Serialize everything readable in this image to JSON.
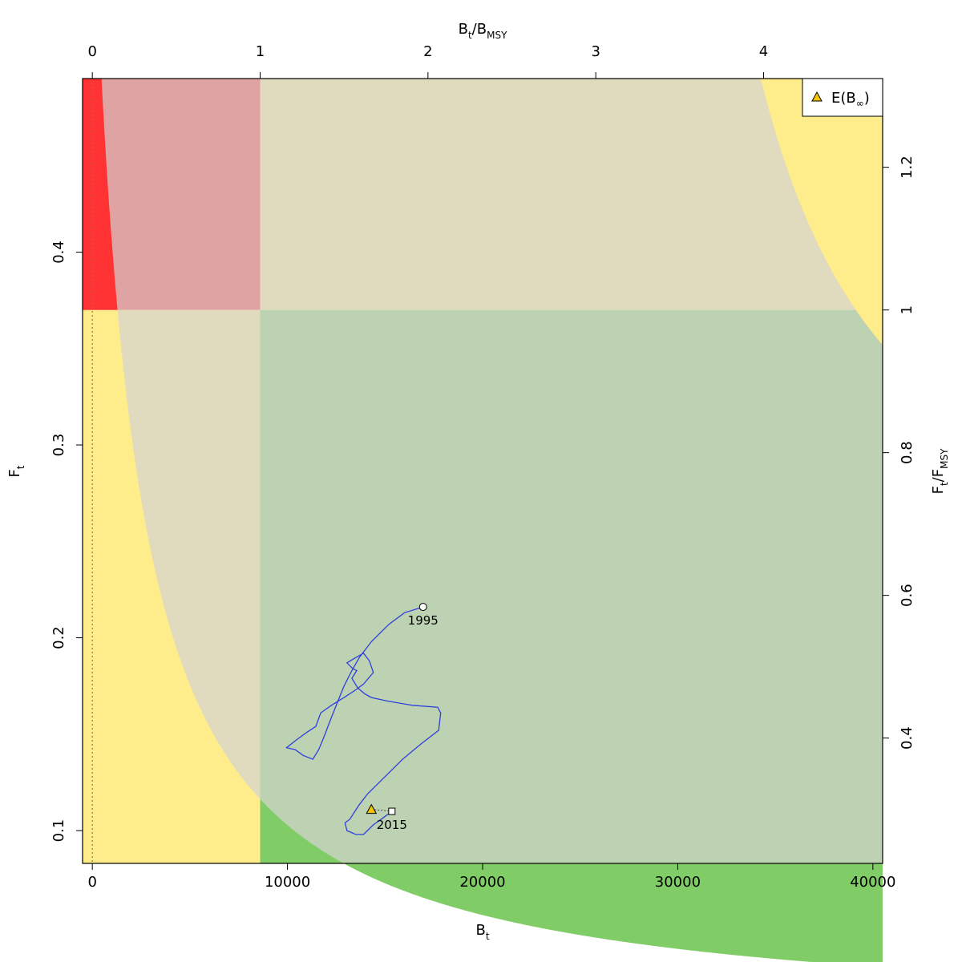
{
  "chart_data": {
    "type": "line",
    "x_axis_bottom": {
      "label_main": "B",
      "label_sub": "t",
      "range": [
        -500,
        40500
      ],
      "ticks": [
        0,
        10000,
        20000,
        30000,
        40000
      ],
      "tick_labels": [
        "0",
        "10000",
        "20000",
        "30000",
        "40000"
      ]
    },
    "x_axis_top": {
      "label_main_1": "B",
      "label_sub_1": "t",
      "label_slash": "/B",
      "label_sub_2": "MSY",
      "ticks": [
        0,
        1,
        2,
        3,
        4
      ],
      "tick_labels": [
        "0",
        "1",
        "2",
        "3",
        "4"
      ],
      "bmsy": 8600
    },
    "y_axis_left": {
      "label_main": "F",
      "label_sub": "t",
      "range": [
        0.083,
        0.49
      ],
      "ticks": [
        0.1,
        0.2,
        0.3,
        0.4
      ],
      "tick_labels": [
        "0.1",
        "0.2",
        "0.3",
        "0.4"
      ]
    },
    "y_axis_right": {
      "label_main_1": "F",
      "label_sub_1": "t",
      "label_slash": "/F",
      "label_sub_2": "MSY",
      "ticks": [
        0.4,
        0.6,
        0.8,
        1,
        1.2
      ],
      "tick_labels": [
        "0.4",
        "0.6",
        "0.8",
        "1",
        "1.2"
      ],
      "fmsy": 0.37
    },
    "reference_lines": {
      "vertical_dotted_x": 0
    },
    "colors": {
      "red": "#ff3333",
      "pink": "#e0a3a4",
      "beige": "#e0dbbe",
      "yellow": "#ffec8b",
      "light_green": "#bcd2b2",
      "green": "#80cc66",
      "trajectory": "#2f3fdc",
      "triangle": "#f5c700",
      "dotted": "#a07050"
    },
    "series": [
      {
        "name": "trajectory",
        "points": [
          [
            16950,
            0.216
          ],
          [
            16000,
            0.213
          ],
          [
            15200,
            0.207
          ],
          [
            14300,
            0.198
          ],
          [
            13700,
            0.19
          ],
          [
            13300,
            0.183
          ],
          [
            12900,
            0.175
          ],
          [
            12500,
            0.165
          ],
          [
            12150,
            0.156
          ],
          [
            11850,
            0.148
          ],
          [
            11600,
            0.142
          ],
          [
            11300,
            0.137
          ],
          [
            10800,
            0.139
          ],
          [
            10400,
            0.142
          ],
          [
            9950,
            0.143
          ],
          [
            10450,
            0.147
          ],
          [
            11000,
            0.151
          ],
          [
            11450,
            0.154
          ],
          [
            11700,
            0.161
          ],
          [
            12250,
            0.165
          ],
          [
            12900,
            0.169
          ],
          [
            13500,
            0.173
          ],
          [
            13900,
            0.176
          ],
          [
            14400,
            0.182
          ],
          [
            14200,
            0.188
          ],
          [
            13900,
            0.192
          ],
          [
            13550,
            0.19
          ],
          [
            13050,
            0.187
          ],
          [
            13350,
            0.184
          ],
          [
            13550,
            0.183
          ],
          [
            13300,
            0.179
          ],
          [
            13600,
            0.174
          ],
          [
            13950,
            0.171
          ],
          [
            14300,
            0.169
          ],
          [
            15200,
            0.167
          ],
          [
            16400,
            0.165
          ],
          [
            17700,
            0.164
          ],
          [
            17850,
            0.161
          ],
          [
            17750,
            0.152
          ],
          [
            16850,
            0.145
          ],
          [
            15900,
            0.137
          ],
          [
            15000,
            0.128
          ],
          [
            14100,
            0.119
          ],
          [
            13650,
            0.113
          ],
          [
            13200,
            0.106
          ],
          [
            12950,
            0.104
          ],
          [
            13050,
            0.1
          ],
          [
            13500,
            0.098
          ],
          [
            13900,
            0.098
          ],
          [
            14400,
            0.103
          ],
          [
            14950,
            0.107
          ],
          [
            15350,
            0.11
          ]
        ]
      }
    ],
    "points": [
      {
        "name": "start",
        "x": 16950,
        "y": 0.216,
        "label": "1995",
        "shape": "circle"
      },
      {
        "name": "end",
        "x": 15350,
        "y": 0.11,
        "label": "2015",
        "shape": "square"
      },
      {
        "name": "equilibrium",
        "x": 14300,
        "y": 0.111,
        "shape": "triangle"
      }
    ],
    "legend": {
      "position": "top-right",
      "label_prefix": "E(B",
      "label_sub": "∞",
      "label_suffix": ")"
    }
  }
}
